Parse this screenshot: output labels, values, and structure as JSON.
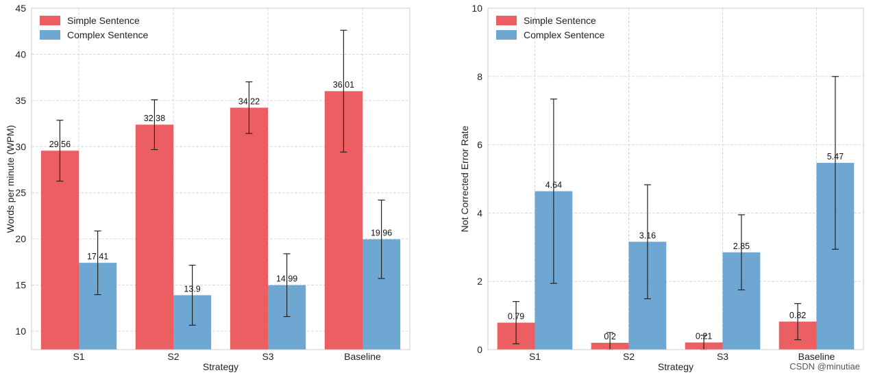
{
  "chart_data": [
    {
      "type": "bar",
      "xlabel": "Strategy",
      "ylabel": "Words per minute (WPM)",
      "ylim": [
        8,
        45
      ],
      "yticks": [
        10,
        15,
        20,
        25,
        30,
        35,
        40,
        45
      ],
      "grid": true,
      "legend_position": "top-left",
      "categories": [
        "S1",
        "S2",
        "S3",
        "Baseline"
      ],
      "series": [
        {
          "name": "Simple Sentence",
          "color": "#e8484b",
          "values": [
            29.56,
            32.38,
            34.22,
            36.01
          ],
          "labels": [
            "29.56",
            "32.38",
            "34.22",
            "36.01"
          ],
          "errors": [
            3.3,
            2.7,
            2.8,
            6.6
          ]
        },
        {
          "name": "Complex Sentence",
          "color": "#5b9bcd",
          "values": [
            17.41,
            13.9,
            14.99,
            19.96
          ],
          "labels": [
            "17.41",
            "13.9",
            "14.99",
            "19.96"
          ],
          "errors": [
            3.45,
            3.25,
            3.4,
            4.25
          ]
        }
      ]
    },
    {
      "type": "bar",
      "xlabel": "Strategy",
      "ylabel": "Not Corrected Error Rate",
      "ylim": [
        0,
        10
      ],
      "yticks": [
        0,
        2,
        4,
        6,
        8,
        10
      ],
      "grid": true,
      "legend_position": "top-left",
      "categories": [
        "S1",
        "S2",
        "S3",
        "Baseline"
      ],
      "series": [
        {
          "name": "Simple Sentence",
          "color": "#e8484b",
          "values": [
            0.79,
            0.2,
            0.21,
            0.82
          ],
          "labels": [
            "0.79",
            "0.2",
            "0.21",
            "0.82"
          ],
          "errors": [
            0.62,
            0.3,
            0.21,
            0.53
          ]
        },
        {
          "name": "Complex Sentence",
          "color": "#5b9bcd",
          "values": [
            4.64,
            3.16,
            2.85,
            5.47
          ],
          "labels": [
            "4.64",
            "3.16",
            "2.85",
            "5.47"
          ],
          "errors": [
            2.7,
            1.67,
            1.1,
            2.53
          ]
        }
      ]
    }
  ],
  "watermark": "CSDN @minutiae"
}
